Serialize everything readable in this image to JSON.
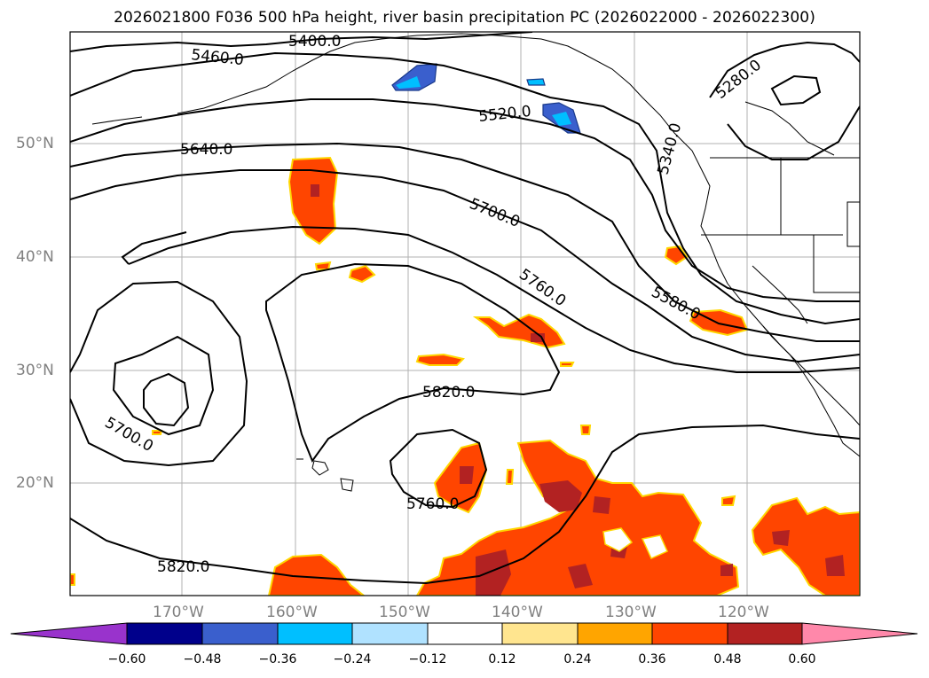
{
  "title": "2026021800 F036 500 hPa height, river basin precipitation PC (2026022000 - 2026022300)",
  "lat_labels": [
    "50°N",
    "40°N",
    "30°N",
    "20°N"
  ],
  "lon_labels": [
    "170°W",
    "160°W",
    "150°W",
    "140°W",
    "130°W",
    "120°W"
  ],
  "contour_labels": [
    "5460.0",
    "5400.0",
    "5520.0",
    "5280.0",
    "5340.0",
    "5640.0",
    "5700.0",
    "5760.0",
    "5580.0",
    "5820.0",
    "5700.0",
    "5760.0",
    "5820.0"
  ],
  "colorbar": {
    "ticks": [
      "−0.60",
      "−0.48",
      "−0.36",
      "−0.24",
      "−0.12",
      "0.12",
      "0.24",
      "0.36",
      "0.48",
      "0.60"
    ],
    "colors": [
      "#9933cc",
      "#00008b",
      "#3a5fcd",
      "#00bfff",
      "#b0e2ff",
      "#ffffff",
      "#ffe58f",
      "#ffa500",
      "#ff4500",
      "#b22222",
      "#ff88aa"
    ]
  }
}
